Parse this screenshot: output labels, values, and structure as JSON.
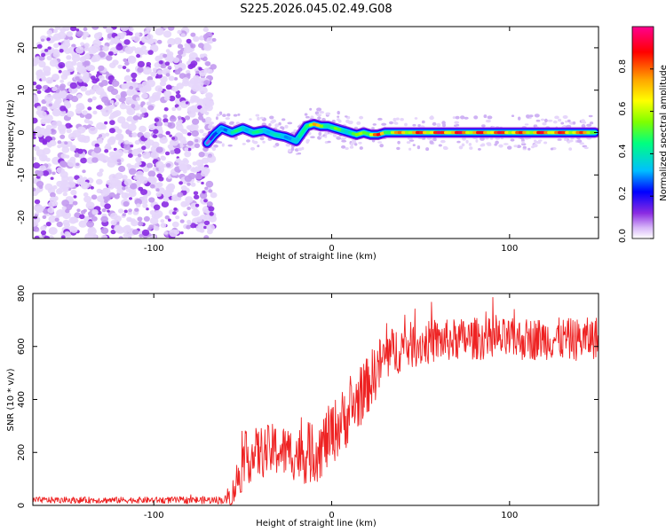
{
  "chart_data": [
    {
      "type": "heatmap",
      "title": "S225.2026.045.02.49.G08",
      "xlabel": "Height of straight line (km)",
      "ylabel": "Frequency (Hz)",
      "xlim": [
        -168,
        150
      ],
      "ylim": [
        -25,
        25
      ],
      "x_ticks": [
        -100,
        0,
        100
      ],
      "y_ticks": [
        -20,
        -10,
        0,
        10,
        20
      ],
      "x_tick_labels": [
        "-100",
        "0",
        "100"
      ],
      "y_tick_labels": [
        "-20",
        "-10",
        "0",
        "10",
        "20"
      ],
      "noise_region_x": [
        -168,
        -66
      ],
      "ridge": {
        "x": [
          -70,
          -66,
          -62,
          -56,
          -50,
          -44,
          -38,
          -32,
          -26,
          -20,
          -14,
          -10,
          -6,
          -2,
          2,
          6,
          10,
          14,
          18,
          22,
          26,
          30,
          40,
          50,
          60,
          70,
          80,
          90,
          100,
          110,
          120,
          130,
          140,
          148
        ],
        "freq_hz": [
          -2.5,
          -0.5,
          1.0,
          0.0,
          1.0,
          0.0,
          0.5,
          -0.5,
          -1.0,
          -2.0,
          1.5,
          2.0,
          1.5,
          1.5,
          1.0,
          0.5,
          0.0,
          -0.5,
          0.0,
          -0.5,
          -0.5,
          0.0,
          0.0,
          0.0,
          0.0,
          0.0,
          0.0,
          0.0,
          0.0,
          0.0,
          0.0,
          0.0,
          0.0,
          0.0
        ],
        "amplitude": [
          0.15,
          0.25,
          0.4,
          0.45,
          0.5,
          0.45,
          0.5,
          0.4,
          0.45,
          0.35,
          0.75,
          0.8,
          0.65,
          0.6,
          0.55,
          0.5,
          0.6,
          0.55,
          0.7,
          0.85,
          0.9,
          0.7,
          0.85,
          0.9,
          0.95,
          0.95,
          0.9,
          0.95,
          0.9,
          0.85,
          0.95,
          0.9,
          0.85,
          0.8
        ]
      },
      "colorbar": {
        "label": "Normalized spectral amplitude",
        "range": [
          0,
          1
        ],
        "ticks": [
          0.0,
          0.2,
          0.4,
          0.6,
          0.8
        ],
        "tick_labels": [
          "0.0",
          "0.2",
          "0.4",
          "0.6",
          "0.8"
        ],
        "colors": [
          "#ffffff",
          "#d8b8f8",
          "#8a2be2",
          "#0000ff",
          "#00bfff",
          "#00ff80",
          "#7fff00",
          "#ffff00",
          "#ffa500",
          "#ff0000",
          "#ff0090"
        ]
      }
    },
    {
      "type": "line",
      "xlabel": "Height of straight line (km)",
      "ylabel": "SNR (10 * v/v)",
      "xlim": [
        -168,
        150
      ],
      "ylim": [
        0,
        800
      ],
      "x_ticks": [
        -100,
        0,
        100
      ],
      "y_ticks": [
        0,
        200,
        400,
        600,
        800
      ],
      "x_tick_labels": [
        "-100",
        "0",
        "100"
      ],
      "y_tick_labels": [
        "0",
        "200",
        "400",
        "600",
        "800"
      ],
      "series": [
        {
          "name": "SNR",
          "color": "#ee2222",
          "trend_x": [
            -168,
            -100,
            -60,
            -56,
            -52,
            -48,
            -44,
            -40,
            -32,
            -24,
            -16,
            -10,
            -6,
            0,
            10,
            20,
            26,
            30,
            40,
            60,
            80,
            100,
            120,
            140,
            150
          ],
          "trend_y": [
            20,
            20,
            20,
            40,
            120,
            180,
            190,
            200,
            210,
            200,
            190,
            200,
            220,
            270,
            350,
            450,
            520,
            560,
            600,
            620,
            630,
            625,
            630,
            625,
            635
          ],
          "noise_amplitude": [
            12,
            12,
            15,
            50,
            90,
            100,
            100,
            100,
            100,
            100,
            110,
            120,
            120,
            120,
            120,
            110,
            110,
            100,
            90,
            80,
            80,
            80,
            80,
            80,
            80
          ]
        }
      ]
    }
  ]
}
